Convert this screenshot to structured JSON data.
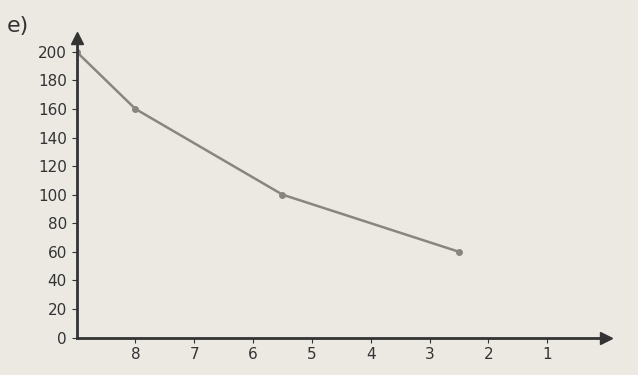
{
  "chart_data": {
    "type": "line",
    "title": "e)",
    "x": [
      9,
      8,
      5.5,
      2.5
    ],
    "values": [
      200,
      160,
      100,
      60
    ],
    "color": "#8a8580",
    "marker": "o",
    "line_style": "solid",
    "xlim": [
      9,
      0
    ],
    "xticks": [
      8,
      7,
      6,
      5,
      4,
      3,
      2,
      1
    ],
    "ylim": [
      0,
      210
    ],
    "yticks": [
      0,
      20,
      40,
      60,
      80,
      100,
      120,
      140,
      160,
      180,
      200
    ],
    "grid": false
  }
}
